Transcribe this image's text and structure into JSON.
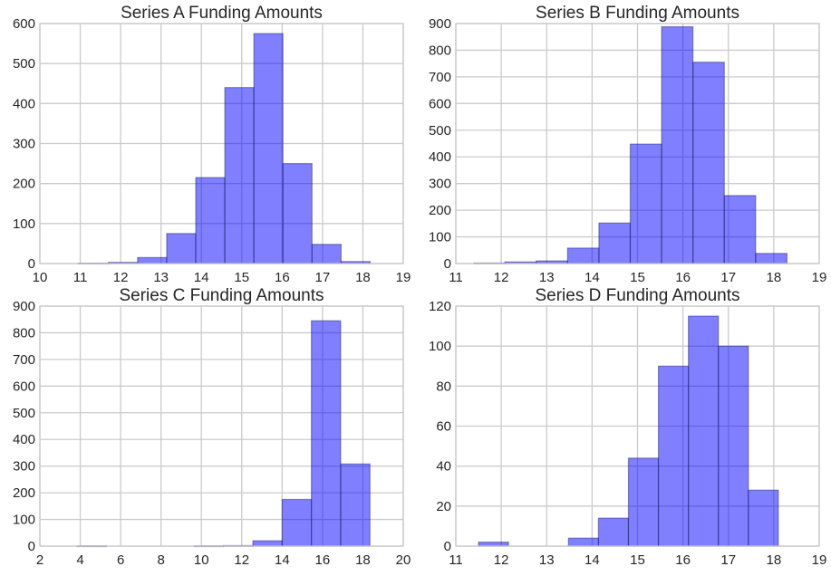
{
  "chart_data": [
    {
      "type": "bar",
      "title": "Series A Funding Amounts",
      "xlim": [
        10,
        19
      ],
      "ylim": [
        0,
        600
      ],
      "xticks": [
        "10",
        "11",
        "12",
        "13",
        "14",
        "15",
        "16",
        "17",
        "18",
        "19"
      ],
      "yticks": [
        "0",
        "100",
        "200",
        "300",
        "400",
        "500",
        "600"
      ],
      "grid": true,
      "bins": [
        {
          "x0": 10.95,
          "x1": 11.7,
          "count": 1
        },
        {
          "x0": 11.7,
          "x1": 12.42,
          "count": 3
        },
        {
          "x0": 12.42,
          "x1": 13.14,
          "count": 15
        },
        {
          "x0": 13.14,
          "x1": 13.86,
          "count": 75
        },
        {
          "x0": 13.86,
          "x1": 14.58,
          "count": 215
        },
        {
          "x0": 14.58,
          "x1": 15.3,
          "count": 440
        },
        {
          "x0": 15.3,
          "x1": 16.02,
          "count": 575
        },
        {
          "x0": 16.02,
          "x1": 16.74,
          "count": 250
        },
        {
          "x0": 16.74,
          "x1": 17.46,
          "count": 48
        },
        {
          "x0": 17.46,
          "x1": 18.18,
          "count": 5
        }
      ]
    },
    {
      "type": "bar",
      "title": "Series B Funding Amounts",
      "xlim": [
        11,
        19
      ],
      "ylim": [
        0,
        900
      ],
      "xticks": [
        "11",
        "12",
        "13",
        "14",
        "15",
        "16",
        "17",
        "18",
        "19"
      ],
      "yticks": [
        "0",
        "100",
        "200",
        "300",
        "400",
        "500",
        "600",
        "700",
        "800",
        "900"
      ],
      "grid": true,
      "bins": [
        {
          "x0": 11.4,
          "x1": 12.08,
          "count": 2
        },
        {
          "x0": 12.08,
          "x1": 12.77,
          "count": 6
        },
        {
          "x0": 12.77,
          "x1": 13.46,
          "count": 10
        },
        {
          "x0": 13.46,
          "x1": 14.15,
          "count": 58
        },
        {
          "x0": 14.15,
          "x1": 14.84,
          "count": 152
        },
        {
          "x0": 14.84,
          "x1": 15.53,
          "count": 448
        },
        {
          "x0": 15.53,
          "x1": 16.22,
          "count": 888
        },
        {
          "x0": 16.22,
          "x1": 16.91,
          "count": 755
        },
        {
          "x0": 16.91,
          "x1": 17.6,
          "count": 255
        },
        {
          "x0": 17.6,
          "x1": 18.29,
          "count": 38
        }
      ]
    },
    {
      "type": "bar",
      "title": "Series C Funding Amounts",
      "xlim": [
        2,
        20
      ],
      "ylim": [
        0,
        900
      ],
      "xticks": [
        "2",
        "4",
        "6",
        "8",
        "10",
        "12",
        "14",
        "16",
        "18",
        "20"
      ],
      "yticks": [
        "0",
        "100",
        "200",
        "300",
        "400",
        "500",
        "600",
        "700",
        "800",
        "900"
      ],
      "grid": true,
      "bins": [
        {
          "x0": 3.85,
          "x1": 5.3,
          "count": 1
        },
        {
          "x0": 5.3,
          "x1": 6.75,
          "count": 0
        },
        {
          "x0": 6.75,
          "x1": 8.2,
          "count": 0
        },
        {
          "x0": 8.2,
          "x1": 9.65,
          "count": 0
        },
        {
          "x0": 9.65,
          "x1": 11.1,
          "count": 1
        },
        {
          "x0": 11.1,
          "x1": 12.55,
          "count": 2
        },
        {
          "x0": 12.55,
          "x1": 14.0,
          "count": 20
        },
        {
          "x0": 14.0,
          "x1": 15.45,
          "count": 175
        },
        {
          "x0": 15.45,
          "x1": 16.9,
          "count": 845
        },
        {
          "x0": 16.9,
          "x1": 18.35,
          "count": 308
        }
      ]
    },
    {
      "type": "bar",
      "title": "Series D Funding Amounts",
      "xlim": [
        11,
        19
      ],
      "ylim": [
        0,
        120
      ],
      "xticks": [
        "11",
        "12",
        "13",
        "14",
        "15",
        "16",
        "17",
        "18",
        "19"
      ],
      "yticks": [
        "0",
        "20",
        "40",
        "60",
        "80",
        "100",
        "120"
      ],
      "grid": true,
      "bins": [
        {
          "x0": 11.5,
          "x1": 12.16,
          "count": 2
        },
        {
          "x0": 12.16,
          "x1": 12.82,
          "count": 0
        },
        {
          "x0": 12.82,
          "x1": 13.48,
          "count": 0
        },
        {
          "x0": 13.48,
          "x1": 14.14,
          "count": 4
        },
        {
          "x0": 14.14,
          "x1": 14.8,
          "count": 14
        },
        {
          "x0": 14.8,
          "x1": 15.46,
          "count": 44
        },
        {
          "x0": 15.46,
          "x1": 16.12,
          "count": 90
        },
        {
          "x0": 16.12,
          "x1": 16.78,
          "count": 115
        },
        {
          "x0": 16.78,
          "x1": 17.44,
          "count": 100
        },
        {
          "x0": 17.44,
          "x1": 18.1,
          "count": 28
        }
      ]
    }
  ],
  "colors": {
    "bar_fill": "#0000ff",
    "grid": "#cbcbcb",
    "text": "#262626",
    "background": "#ffffff"
  }
}
